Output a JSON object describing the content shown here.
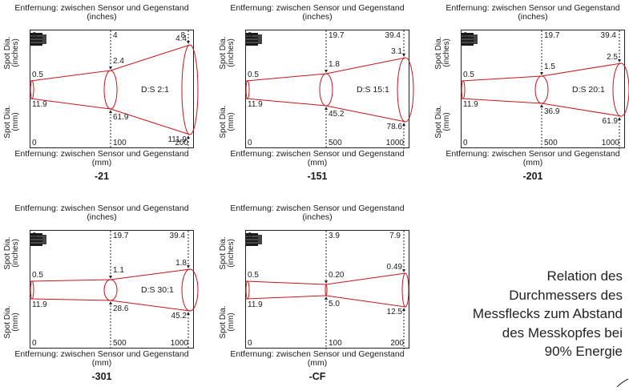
{
  "panels": [
    {
      "name": "-21",
      "dist_inch_label": "Entfernung: zwischen Sensor und Gegenstand (inches)",
      "dist_mm_label": "Entfernung: zwischen Sensor und Gegenstand (mm)",
      "spot_inch_label": "Spot Dia. (inches)",
      "spot_mm_label": "Spot Dia. (mm)",
      "inch_ticks": [
        "0",
        "4",
        "8"
      ],
      "mm_ticks": [
        "0",
        "100",
        "200"
      ],
      "spot_inch": [
        "0.5",
        "2.4",
        "4.4"
      ],
      "spot_mm": [
        "11.9",
        "61.9",
        "111.9"
      ],
      "ratio": "D:S 2:1"
    },
    {
      "name": "-151",
      "dist_inch_label": "Entfernung: zwischen Sensor und Gegenstand (inches)",
      "dist_mm_label": "Entfernung: zwischen Sensor und Gegenstand (mm)",
      "spot_inch_label": "Spot Dia. (inches)",
      "spot_mm_label": "Spot Dia. (mm)",
      "inch_ticks": [
        "0",
        "19.7",
        "39.4"
      ],
      "mm_ticks": [
        "0",
        "500",
        "1000"
      ],
      "spot_inch": [
        "0.5",
        "1.8",
        "3.1"
      ],
      "spot_mm": [
        "11.9",
        "45.2",
        "78.6"
      ],
      "ratio": "D:S 15:1"
    },
    {
      "name": "-201",
      "dist_inch_label": "Entfernung: zwischen Sensor und Gegenstand (inches)",
      "dist_mm_label": "Entfernung: zwischen Sensor und Gegenstand (mm)",
      "spot_inch_label": "Spot Dia. (inches)",
      "spot_mm_label": "Spot Dia. (mm)",
      "inch_ticks": [
        "0",
        "19.7",
        "39.4"
      ],
      "mm_ticks": [
        "0",
        "500",
        "1000"
      ],
      "spot_inch": [
        "0.5",
        "1.5",
        "2.5"
      ],
      "spot_mm": [
        "11.9",
        "36.9",
        "61.9"
      ],
      "ratio": "D:S 20:1"
    },
    {
      "name": "-301",
      "dist_inch_label": "Entfernung: zwischen Sensor und Gegenstand (inches)",
      "dist_mm_label": "Entfernung: zwischen Sensor und Gegenstand (mm)",
      "spot_inch_label": "Spot Dia. (inches)",
      "spot_mm_label": "Spot Dia. (mm)",
      "inch_ticks": [
        "0",
        "19.7",
        "39.4"
      ],
      "mm_ticks": [
        "0",
        "500",
        "1000"
      ],
      "spot_inch": [
        "0.5",
        "1.1",
        "1.8"
      ],
      "spot_mm": [
        "11.9",
        "28.6",
        "45.2"
      ],
      "ratio": "D:S 30:1"
    },
    {
      "name": "-CF",
      "dist_inch_label": "Entfernung: zwischen Sensor und Gegenstand (inches)",
      "dist_mm_label": "Entfernung: zwischen Sensor und Gegenstand (mm)",
      "spot_inch_label": "Spot Dia. (inches)",
      "spot_mm_label": "Spot Dia. (mm)",
      "inch_ticks": [
        "0",
        "3.9",
        "7.9"
      ],
      "mm_ticks": [
        "0",
        "100",
        "200"
      ],
      "spot_inch": [
        "0.5",
        "0.20",
        "0.49"
      ],
      "spot_mm": [
        "11.9",
        "5.0",
        "12.5"
      ],
      "ratio": ""
    }
  ],
  "caption": {
    "lines": [
      "Relation des",
      "Durchmessers des",
      "Messflecks zum Abstand",
      "des Messkopfes bei",
      "90% Energie"
    ]
  },
  "colors": {
    "beam": "#c4161c",
    "frame": "#222222"
  }
}
